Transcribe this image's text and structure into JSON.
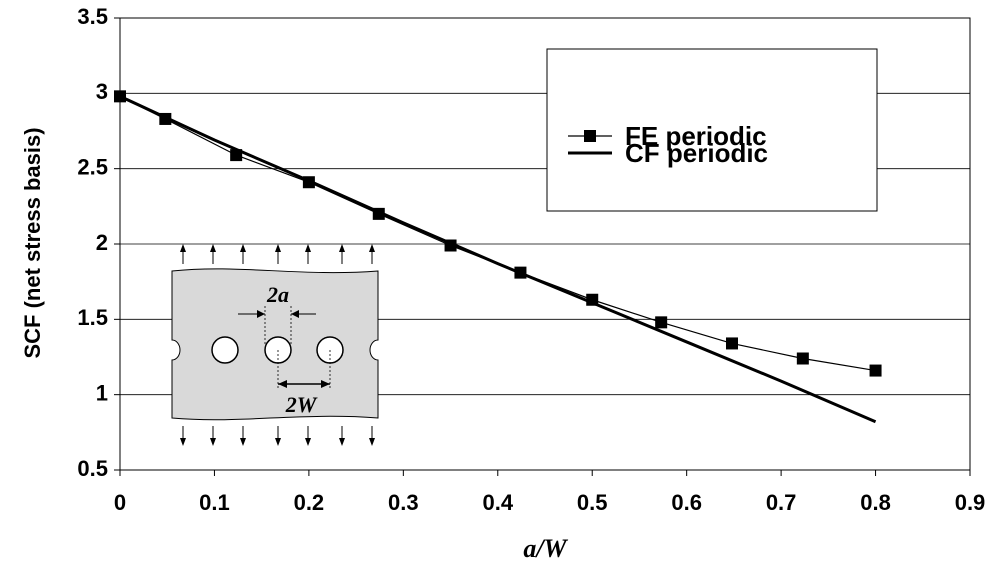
{
  "chart_data": {
    "type": "line",
    "title": "",
    "xlabel": "a/W",
    "ylabel": "SCF (net stress basis)",
    "xlim": [
      0,
      0.9
    ],
    "ylim": [
      0.5,
      3.5
    ],
    "x_ticks": [
      "0",
      "0.1",
      "0.2",
      "0.3",
      "0.4",
      "0.5",
      "0.6",
      "0.7",
      "0.8",
      "0.9"
    ],
    "y_ticks": [
      "0.5",
      "1",
      "1.5",
      "2",
      "2.5",
      "3",
      "3.5"
    ],
    "grid": "horizontal",
    "legend_position": "top-right",
    "series": [
      {
        "name": "FE periodic",
        "marker": "square",
        "points": [
          {
            "x": 0.0,
            "y": 2.98
          },
          {
            "x": 0.048,
            "y": 2.83
          },
          {
            "x": 0.123,
            "y": 2.59
          },
          {
            "x": 0.2,
            "y": 2.41
          },
          {
            "x": 0.274,
            "y": 2.2
          },
          {
            "x": 0.35,
            "y": 1.99
          },
          {
            "x": 0.424,
            "y": 1.81
          },
          {
            "x": 0.5,
            "y": 1.63
          },
          {
            "x": 0.573,
            "y": 1.48
          },
          {
            "x": 0.648,
            "y": 1.34
          },
          {
            "x": 0.723,
            "y": 1.24
          },
          {
            "x": 0.8,
            "y": 1.16
          }
        ]
      },
      {
        "name": "CF periodic",
        "marker": "none",
        "points": [
          {
            "x": 0.0,
            "y": 2.98
          },
          {
            "x": 0.1,
            "y": 2.69
          },
          {
            "x": 0.2,
            "y": 2.42
          },
          {
            "x": 0.3,
            "y": 2.14
          },
          {
            "x": 0.4,
            "y": 1.87
          },
          {
            "x": 0.5,
            "y": 1.61
          },
          {
            "x": 0.6,
            "y": 1.35
          },
          {
            "x": 0.7,
            "y": 1.09
          },
          {
            "x": 0.8,
            "y": 0.82
          }
        ]
      }
    ],
    "inset": {
      "label_hole": "2a",
      "label_pitch": "2W"
    }
  }
}
